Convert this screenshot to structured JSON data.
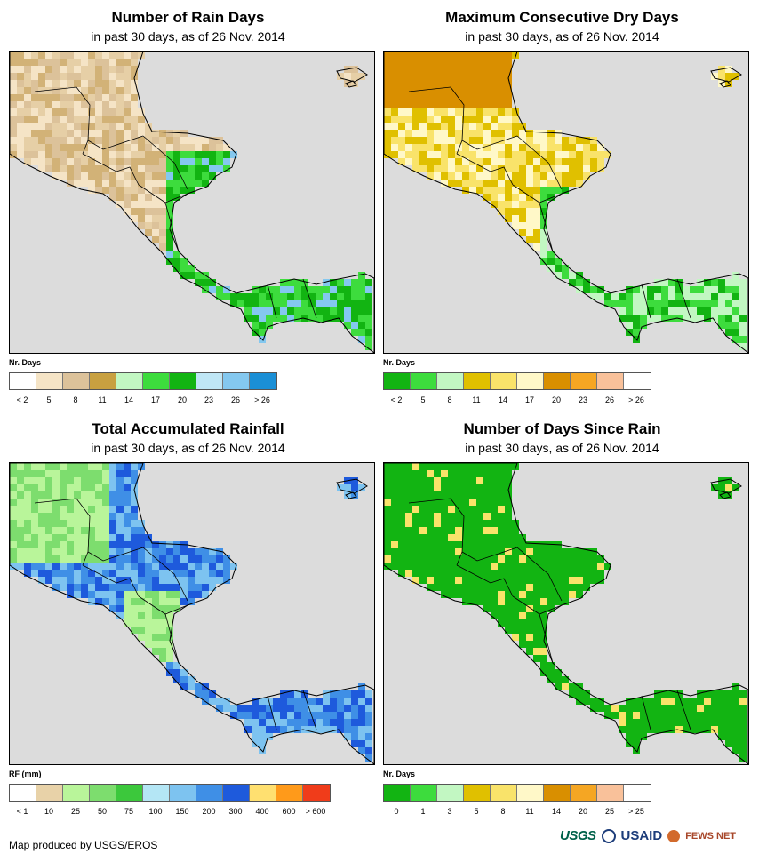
{
  "panels": {
    "rain_days": {
      "title": "Number of Rain Days",
      "subtitle": "in past 30 days, as of 26 Nov. 2014",
      "legend_unit": "Nr. Days",
      "legend_labels": [
        "< 2",
        "5",
        "8",
        "11",
        "14",
        "17",
        "20",
        "23",
        "26",
        "> 26"
      ],
      "legend_colors": [
        "#ffffff",
        "#f5e4c6",
        "#dcc29a",
        "#c8a040",
        "#c2f7c2",
        "#3ddc3d",
        "#12b412",
        "#bfe6f5",
        "#84c8ef",
        "#1a8fd6"
      ],
      "map_palette": [
        "#f5e4c6",
        "#e6cfa6",
        "#dcc29a",
        "#d2b277",
        "#3ddc3d",
        "#12b412",
        "#84c8ef"
      ]
    },
    "dry_days": {
      "title": "Maximum Consecutive Dry Days",
      "subtitle": "in past 30 days, as of 26 Nov. 2014",
      "legend_unit": "Nr. Days",
      "legend_labels": [
        "< 2",
        "5",
        "8",
        "11",
        "14",
        "17",
        "20",
        "23",
        "26",
        "> 26"
      ],
      "legend_colors": [
        "#12b412",
        "#3ddc3d",
        "#c2f7c2",
        "#e0c000",
        "#f9e36a",
        "#fff8c8",
        "#d98f00",
        "#f5a623",
        "#f9c19a",
        "#ffffff"
      ],
      "map_palette": [
        "#fff8c8",
        "#f9e36a",
        "#e0c000",
        "#d98f00",
        "#c2f7c2",
        "#3ddc3d",
        "#12b412"
      ]
    },
    "total_rainfall": {
      "title": "Total Accumulated Rainfall",
      "subtitle": "in past 30 days, as of 26 Nov. 2014",
      "legend_unit": "RF (mm)",
      "legend_labels": [
        "< 1",
        "10",
        "25",
        "50",
        "75",
        "100",
        "150",
        "200",
        "300",
        "400",
        "600",
        "> 600"
      ],
      "legend_colors": [
        "#ffffff",
        "#e8d2a8",
        "#b9f59a",
        "#7ddd6e",
        "#3cc83c",
        "#b4e6f5",
        "#7dc3f0",
        "#3f8fe6",
        "#1e5adc",
        "#ffe070",
        "#ff9a1a",
        "#f03c1a"
      ],
      "map_palette": [
        "#3f8fe6",
        "#1e5adc",
        "#7dc3f0",
        "#7ddd6e",
        "#b9f59a",
        "#ffe070",
        "#ff9a1a"
      ]
    },
    "days_since_rain": {
      "title": "Number of Days Since Rain",
      "subtitle": "in past 30 days, as of 26 Nov. 2014",
      "legend_unit": "Nr. Days",
      "legend_labels": [
        "0",
        "1",
        "3",
        "5",
        "8",
        "11",
        "14",
        "20",
        "25",
        "> 25"
      ],
      "legend_colors": [
        "#12b412",
        "#3ddc3d",
        "#c2f7c2",
        "#e0c000",
        "#f9e36a",
        "#fff8c8",
        "#d98f00",
        "#f5a623",
        "#f9c19a",
        "#ffffff"
      ],
      "map_palette": [
        "#12b412",
        "#12b412",
        "#12b412",
        "#3ddc3d",
        "#c2f7c2",
        "#f9e36a"
      ]
    }
  },
  "footer": {
    "credit": "Map produced by USGS/EROS"
  },
  "logos": {
    "usgs": "USGS",
    "usaid": "USAID",
    "fews": "FEWS NET"
  },
  "map_background": "#dcdcdc"
}
